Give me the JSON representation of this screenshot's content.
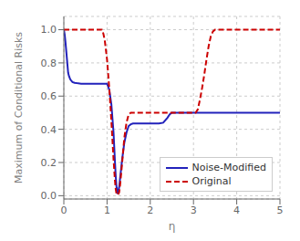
{
  "chart_data": {
    "type": "line",
    "xlabel": "η",
    "ylabel": "Maximum of Conditional Risks",
    "xlim": [
      0,
      5
    ],
    "ylim": [
      -0.02,
      1.08
    ],
    "xticks": [
      0,
      1,
      2,
      3,
      4,
      5
    ],
    "yticks": [
      {
        "value": 0,
        "label": "0.0"
      },
      0.2,
      0.4,
      0.6,
      0.8,
      {
        "value": 1,
        "label": "1.0"
      }
    ],
    "grid": true,
    "legend": "lower right",
    "series": [
      {
        "name": "Noise-Modified",
        "color": "#2222bb",
        "line_style": "solid",
        "x": [
          0.0,
          0.02,
          0.04,
          0.06,
          0.08,
          0.1,
          0.12,
          0.15,
          0.2,
          0.25,
          0.3,
          0.4,
          0.5,
          0.6,
          0.7,
          0.8,
          0.9,
          0.95,
          1.0,
          1.05,
          1.1,
          1.15,
          1.18,
          1.2,
          1.22,
          1.25,
          1.28,
          1.3,
          1.35,
          1.4,
          1.45,
          1.5,
          1.55,
          1.6,
          1.7,
          1.8,
          1.9,
          2.0,
          2.1,
          2.2,
          2.3,
          2.4,
          2.45,
          2.5,
          2.55,
          2.6,
          3.0,
          3.5,
          4.0,
          4.5,
          5.0
        ],
        "values": [
          1.0,
          0.97,
          0.92,
          0.86,
          0.8,
          0.74,
          0.72,
          0.7,
          0.685,
          0.68,
          0.678,
          0.675,
          0.675,
          0.675,
          0.675,
          0.675,
          0.675,
          0.675,
          0.675,
          0.64,
          0.55,
          0.38,
          0.22,
          0.12,
          0.05,
          0.01,
          0.05,
          0.1,
          0.22,
          0.32,
          0.38,
          0.42,
          0.43,
          0.435,
          0.435,
          0.435,
          0.435,
          0.435,
          0.435,
          0.435,
          0.44,
          0.47,
          0.49,
          0.5,
          0.5,
          0.5,
          0.5,
          0.5,
          0.5,
          0.5,
          0.5
        ]
      },
      {
        "name": "Original",
        "color": "#cc0000",
        "line_style": "dashed",
        "x": [
          0.0,
          0.1,
          0.2,
          0.3,
          0.4,
          0.5,
          0.6,
          0.7,
          0.8,
          0.85,
          0.88,
          0.9,
          0.92,
          0.95,
          1.0,
          1.05,
          1.1,
          1.15,
          1.18,
          1.2,
          1.22,
          1.25,
          1.28,
          1.3,
          1.35,
          1.4,
          1.45,
          1.5,
          1.55,
          1.6,
          1.65,
          1.7,
          1.75,
          1.8,
          1.9,
          2.0,
          2.2,
          2.5,
          2.8,
          3.0,
          3.05,
          3.1,
          3.15,
          3.2,
          3.25,
          3.3,
          3.35,
          3.4,
          3.45,
          3.5,
          3.55,
          3.6,
          4.0,
          4.5,
          5.0
        ],
        "values": [
          1.0,
          1.0,
          1.0,
          1.0,
          1.0,
          1.0,
          1.0,
          1.0,
          1.0,
          1.0,
          1.0,
          0.99,
          0.97,
          0.93,
          0.82,
          0.65,
          0.45,
          0.22,
          0.1,
          0.04,
          0.01,
          0.005,
          0.02,
          0.06,
          0.2,
          0.35,
          0.44,
          0.49,
          0.5,
          0.5,
          0.5,
          0.5,
          0.5,
          0.5,
          0.5,
          0.5,
          0.5,
          0.5,
          0.5,
          0.5,
          0.5,
          0.52,
          0.58,
          0.65,
          0.73,
          0.82,
          0.9,
          0.96,
          0.99,
          1.0,
          1.0,
          1.0,
          1.0,
          1.0,
          1.0
        ]
      }
    ]
  }
}
